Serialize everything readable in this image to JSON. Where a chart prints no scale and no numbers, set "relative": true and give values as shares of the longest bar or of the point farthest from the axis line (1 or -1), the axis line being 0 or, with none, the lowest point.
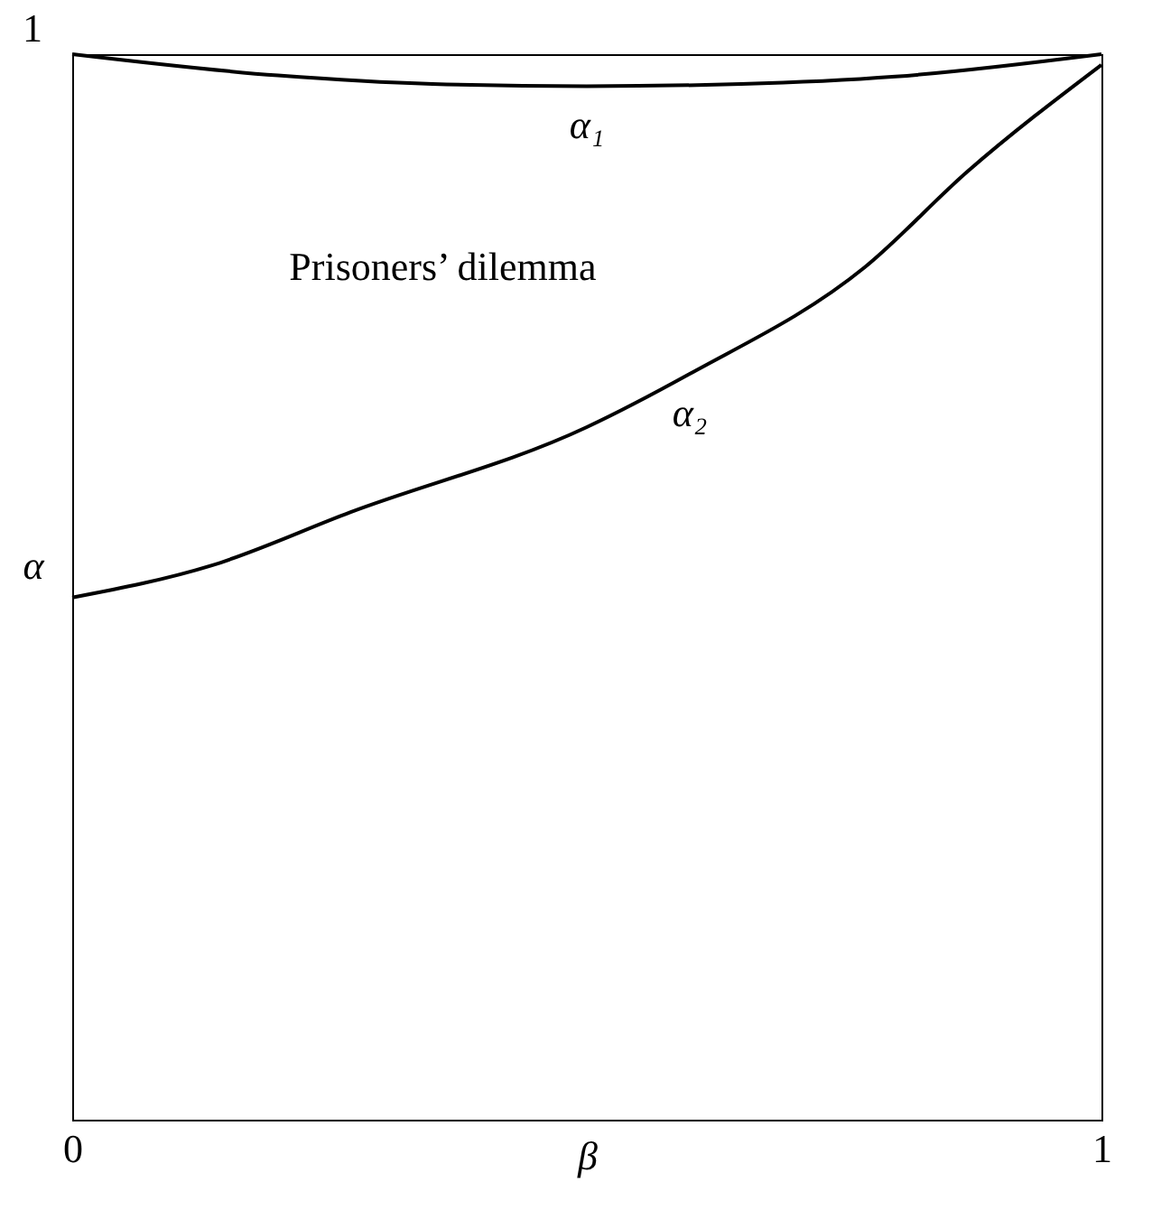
{
  "chart_data": {
    "type": "line",
    "xlabel": "β",
    "ylabel": "α",
    "xlim": [
      0,
      1
    ],
    "xticks": [
      0,
      1
    ],
    "relative": true,
    "series": [
      {
        "name": "α₁",
        "color": "#000000",
        "x": [
          0,
          0.2,
          0.35,
          0.5,
          0.65,
          0.8,
          1
        ],
        "values": [
          1,
          0.98,
          0.972,
          0.97,
          0.972,
          0.979,
          1
        ]
      },
      {
        "name": "α₂",
        "color": "#000000",
        "x": [
          0,
          0.135,
          0.27,
          0.5,
          0.6,
          0.77,
          0.87,
          1
        ],
        "values": [
          0.49,
          0.52,
          0.57,
          0.65,
          0.7,
          0.8,
          0.89,
          0.99
        ]
      }
    ],
    "annotations": [
      "Prisoners’ dilemma",
      "1"
    ]
  }
}
